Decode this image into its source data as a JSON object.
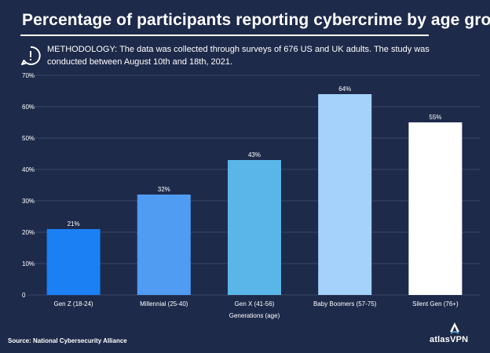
{
  "header": {
    "title": "Percentage of participants reporting cybercrime by age group",
    "methodology": "METHODOLOGY: The data was collected through surveys of 676 US and UK adults. The study was conducted between August 10th and 18th, 2021."
  },
  "footer": {
    "source": "Source: National Cybersecurity Alliance",
    "logo_text": "atlasVPN"
  },
  "colors": {
    "background": "#1e2a4a",
    "gridline": "#3a4666",
    "bars": [
      "#1a80f4",
      "#4f9cf2",
      "#5ab6e8",
      "#a4d2fb",
      "#ffffff"
    ]
  },
  "icons": {
    "methodology": "exclamation-bubble-icon",
    "logo": "atlasvpn-logo-icon"
  },
  "chart_data": {
    "type": "bar",
    "title": "Percentage of participants reporting cybercrime by age group",
    "xlabel": "Generations (age)",
    "ylabel": "",
    "categories": [
      "Gen Z (18-24)",
      "Millennial (25-40)",
      "Gen X (41-56)",
      "Baby Boomers (57-75)",
      "Silent Gen (76+)"
    ],
    "values": [
      21,
      32,
      43,
      64,
      55
    ],
    "data_labels": [
      "21%",
      "32%",
      "43%",
      "64%",
      "55%"
    ],
    "ylim": [
      0,
      70
    ],
    "yticks": [
      0,
      10,
      20,
      30,
      40,
      50,
      60,
      70
    ],
    "ytick_labels": [
      "0",
      "10%",
      "20%",
      "30%",
      "40%",
      "50%",
      "60%",
      "70%"
    ],
    "grid": true,
    "legend": "none"
  }
}
